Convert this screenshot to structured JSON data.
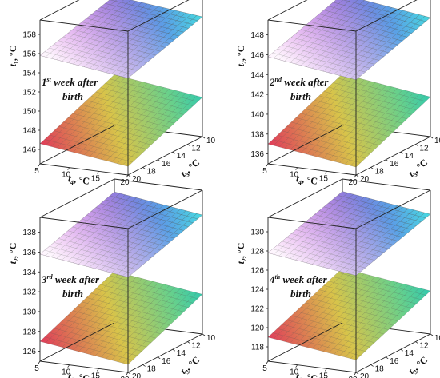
{
  "chart_data": [
    {
      "type": "surface3d",
      "panel": "1",
      "annotation_line1": "1st week after",
      "annotation_line1_ord": "st",
      "annotation_line1_num": "1",
      "annotation_line1_rest": " week after",
      "annotation_line2": "birth",
      "zlabel_var": "t",
      "zlabel_sub": "1",
      "zlabel_unit": ", °C",
      "xlabel_var": "t",
      "xlabel_sub": "4",
      "xlabel_unit": ", °C",
      "ylabel_var": "t",
      "ylabel_sub": "3",
      "ylabel_unit": ", °C",
      "x_ticks": [
        "5",
        "10",
        "15",
        "20"
      ],
      "y_ticks": [
        "10",
        "12",
        "14",
        "16",
        "18",
        "20"
      ],
      "z_ticks": [
        "146",
        "148",
        "150",
        "152",
        "154",
        "156",
        "158"
      ],
      "zlim": [
        144.5,
        159.5
      ],
      "xlim": [
        5,
        20
      ],
      "ylim": [
        10,
        20
      ],
      "upper_surface": {
        "z_at_x5_y10": 158.0,
        "z_at_x20_y10": 157.0,
        "z_at_x5_y20": 155.8,
        "z_at_x20_y20": 154.6
      },
      "lower_surface": {
        "z_at_x5_y10": 149.8,
        "z_at_x20_y10": 148.6,
        "z_at_x5_y20": 146.6,
        "z_at_x20_y20": 145.4
      }
    },
    {
      "type": "surface3d",
      "panel": "2",
      "annotation_line1_num": "2",
      "annotation_line1_ord": "nd",
      "annotation_line1_rest": " week after",
      "annotation_line2": "birth",
      "zlabel_var": "t",
      "zlabel_sub": "2",
      "zlabel_unit": ", °C",
      "xlabel_var": "t",
      "xlabel_sub": "4",
      "xlabel_unit": ", °C",
      "ylabel_var": "t",
      "ylabel_sub": "3",
      "ylabel_unit": ", °C",
      "x_ticks": [
        "5",
        "10",
        "15",
        "20"
      ],
      "y_ticks": [
        "10",
        "12",
        "14",
        "16",
        "18",
        "20"
      ],
      "z_ticks": [
        "136",
        "138",
        "140",
        "142",
        "144",
        "146",
        "148"
      ],
      "zlim": [
        135,
        149.5
      ],
      "xlim": [
        5,
        20
      ],
      "ylim": [
        10,
        20
      ],
      "upper_surface": {
        "z_at_x5_y10": 148.2,
        "z_at_x20_y10": 147.0,
        "z_at_x5_y20": 145.8,
        "z_at_x20_y20": 144.6
      },
      "lower_surface": {
        "z_at_x5_y10": 140.2,
        "z_at_x20_y10": 139.0,
        "z_at_x5_y20": 137.0,
        "z_at_x20_y20": 135.8
      }
    },
    {
      "type": "surface3d",
      "panel": "3",
      "annotation_line1_num": "3",
      "annotation_line1_ord": "rd",
      "annotation_line1_rest": " week after",
      "annotation_line2": "birth",
      "zlabel_var": "t",
      "zlabel_sub": "2",
      "zlabel_unit": ", °C",
      "xlabel_var": "t",
      "xlabel_sub": "4",
      "xlabel_unit": ", °C",
      "ylabel_var": "t",
      "ylabel_sub": "3",
      "ylabel_unit": ", °C",
      "x_ticks": [
        "5",
        "10",
        "15",
        "20"
      ],
      "y_ticks": [
        "10",
        "12",
        "14",
        "16",
        "18",
        "20"
      ],
      "z_ticks": [
        "126",
        "128",
        "130",
        "132",
        "134",
        "136",
        "138"
      ],
      "zlim": [
        125,
        139.5
      ],
      "xlim": [
        5,
        20
      ],
      "ylim": [
        10,
        20
      ],
      "upper_surface": {
        "z_at_x5_y10": 138.2,
        "z_at_x20_y10": 137.0,
        "z_at_x5_y20": 135.8,
        "z_at_x20_y20": 134.6
      },
      "lower_surface": {
        "z_at_x5_y10": 130.2,
        "z_at_x20_y10": 129.0,
        "z_at_x5_y20": 127.0,
        "z_at_x20_y20": 125.8
      }
    },
    {
      "type": "surface3d",
      "panel": "4",
      "annotation_line1_num": "4",
      "annotation_line1_ord": "th",
      "annotation_line1_rest": " week after",
      "annotation_line2": "birth",
      "zlabel_var": "t",
      "zlabel_sub": "2",
      "zlabel_unit": ", °C",
      "xlabel_var": "t",
      "xlabel_sub": "4",
      "xlabel_unit": ", °C",
      "ylabel_var": "t",
      "ylabel_sub": "3",
      "ylabel_unit": ", °C",
      "x_ticks": [
        "5",
        "10",
        "15",
        "20"
      ],
      "y_ticks": [
        "10",
        "12",
        "14",
        "16",
        "18",
        "20"
      ],
      "z_ticks": [
        "118",
        "120",
        "122",
        "124",
        "126",
        "128",
        "130"
      ],
      "zlim": [
        116.5,
        131.5
      ],
      "xlim": [
        5,
        20
      ],
      "ylim": [
        10,
        20
      ],
      "upper_surface": {
        "z_at_x5_y10": 130.2,
        "z_at_x20_y10": 129.0,
        "z_at_x5_y20": 127.8,
        "z_at_x20_y20": 126.6
      },
      "lower_surface": {
        "z_at_x5_y10": 122.2,
        "z_at_x20_y10": 121.0,
        "z_at_x5_y20": 119.0,
        "z_at_x20_y20": 117.8
      }
    }
  ]
}
